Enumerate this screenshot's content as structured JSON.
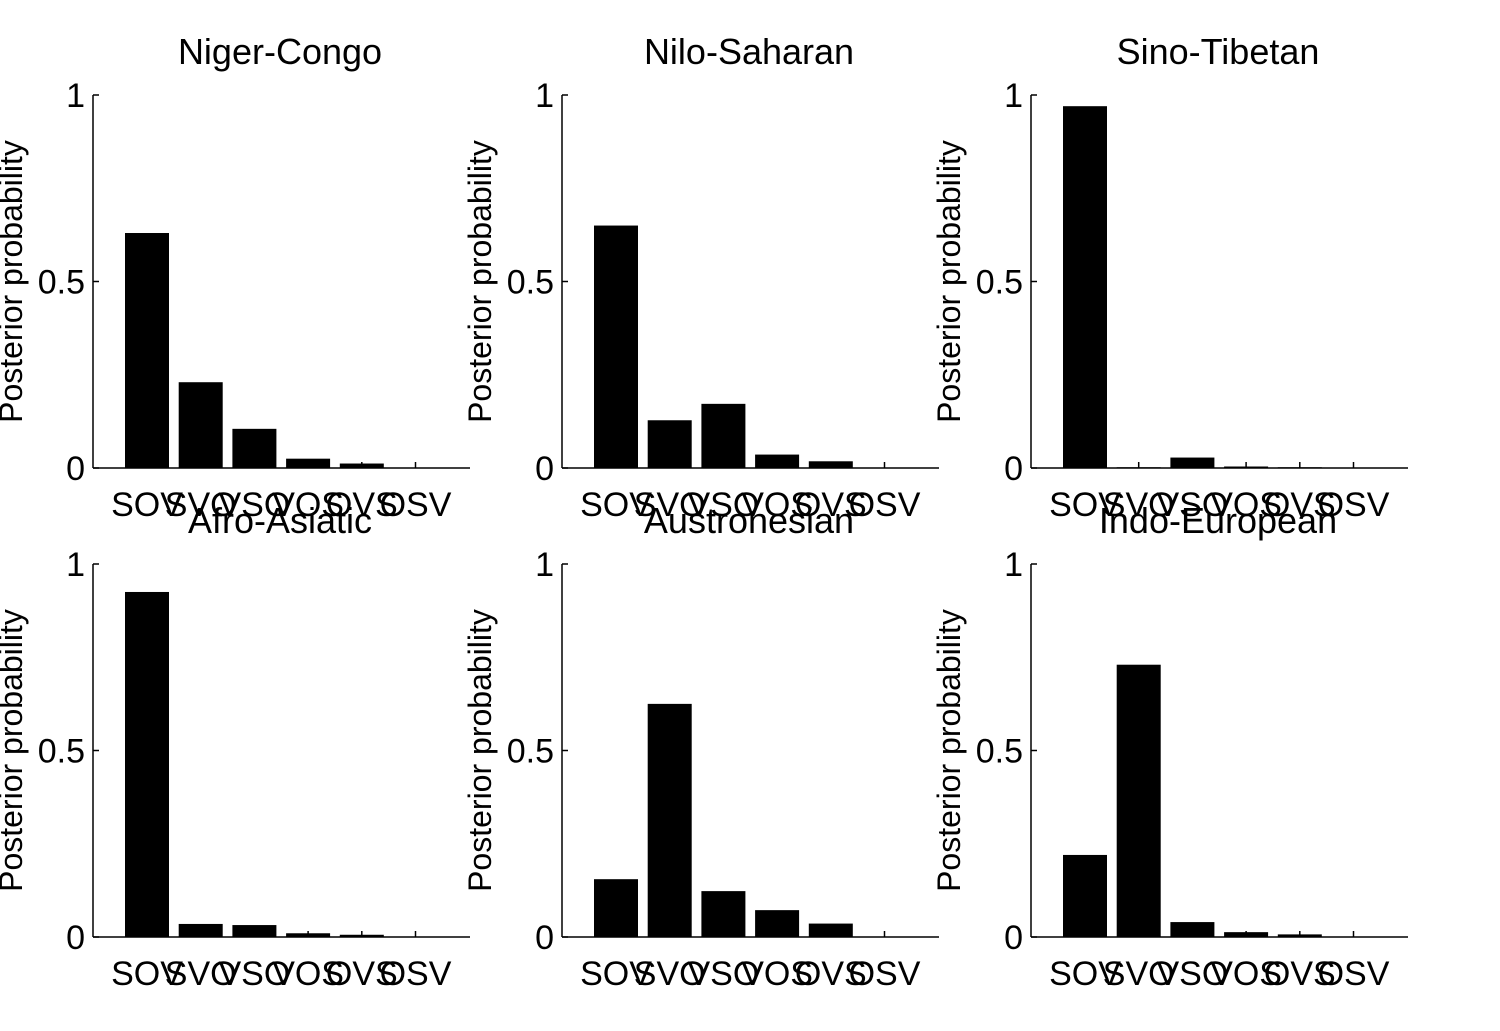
{
  "chart_data": [
    {
      "type": "bar",
      "title": "Niger-Congo",
      "ylabel": "Posterior probability",
      "categories": [
        "SOV",
        "SVO",
        "VSO",
        "VOS",
        "OVS",
        "OSV"
      ],
      "values": [
        0.63,
        0.23,
        0.105,
        0.025,
        0.012,
        0.0
      ],
      "ylim": [
        0,
        1
      ],
      "yticks": [
        0,
        0.5,
        1
      ],
      "ytick_labels": [
        "0",
        "0.5",
        "1"
      ],
      "color": "#000000"
    },
    {
      "type": "bar",
      "title": "Nilo-Saharan",
      "ylabel": "Posterior probability",
      "categories": [
        "SOV",
        "SVO",
        "VSO",
        "VOS",
        "OVS",
        "OSV"
      ],
      "values": [
        0.65,
        0.128,
        0.172,
        0.036,
        0.018,
        0.0
      ],
      "ylim": [
        0,
        1
      ],
      "yticks": [
        0,
        0.5,
        1
      ],
      "ytick_labels": [
        "0",
        "0.5",
        "1"
      ],
      "color": "#000000"
    },
    {
      "type": "bar",
      "title": "Sino-Tibetan",
      "ylabel": "Posterior probability",
      "categories": [
        "SOV",
        "SVO",
        "VSO",
        "VOS",
        "OVS",
        "OSV"
      ],
      "values": [
        0.97,
        0.002,
        0.028,
        0.004,
        0.002,
        0.0
      ],
      "ylim": [
        0,
        1
      ],
      "yticks": [
        0,
        0.5,
        1
      ],
      "ytick_labels": [
        "0",
        "0.5",
        "1"
      ],
      "color": "#000000"
    },
    {
      "type": "bar",
      "title": "Afro-Asiatic",
      "ylabel": "Posterior probability",
      "categories": [
        "SOV",
        "SVO",
        "VSO",
        "VOS",
        "OVS",
        "OSV"
      ],
      "values": [
        0.925,
        0.035,
        0.032,
        0.01,
        0.006,
        0.0
      ],
      "ylim": [
        0,
        1
      ],
      "yticks": [
        0,
        0.5,
        1
      ],
      "ytick_labels": [
        "0",
        "0.5",
        "1"
      ],
      "color": "#000000"
    },
    {
      "type": "bar",
      "title": "Austronesian",
      "ylabel": "Posterior probability",
      "categories": [
        "SOV",
        "SVO",
        "VSO",
        "VOS",
        "OVS",
        "OSV"
      ],
      "values": [
        0.155,
        0.625,
        0.123,
        0.072,
        0.036,
        0.0
      ],
      "ylim": [
        0,
        1
      ],
      "yticks": [
        0,
        0.5,
        1
      ],
      "ytick_labels": [
        "0",
        "0.5",
        "1"
      ],
      "color": "#000000"
    },
    {
      "type": "bar",
      "title": "Indo-European",
      "ylabel": "Posterior probability",
      "categories": [
        "SOV",
        "SVO",
        "VSO",
        "VOS",
        "OVS",
        "OSV"
      ],
      "values": [
        0.22,
        0.73,
        0.04,
        0.013,
        0.007,
        0.0
      ],
      "ylim": [
        0,
        1
      ],
      "yticks": [
        0,
        0.5,
        1
      ],
      "ytick_labels": [
        "0",
        "0.5",
        "1"
      ],
      "color": "#000000"
    }
  ]
}
